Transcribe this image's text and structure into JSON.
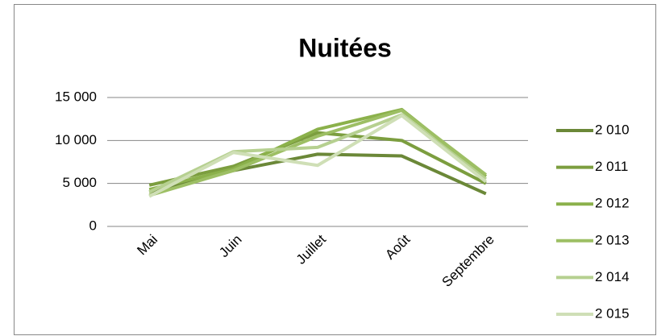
{
  "chart_data": {
    "type": "line",
    "title": "Nuitées",
    "categories": [
      "Mai",
      "Juin",
      "Juillet",
      "Août",
      "Septembre"
    ],
    "series": [
      {
        "name": "2 010",
        "color": "#6b8838",
        "values": [
          4000,
          6500,
          8400,
          8200,
          3800
        ]
      },
      {
        "name": "2 011",
        "color": "#7c9e3f",
        "values": [
          4800,
          7000,
          10900,
          10000,
          5000
        ]
      },
      {
        "name": "2 012",
        "color": "#8bb14b",
        "values": [
          4300,
          6700,
          11300,
          13600,
          5800
        ]
      },
      {
        "name": "2 013",
        "color": "#9dbf64",
        "values": [
          3600,
          6500,
          10500,
          13500,
          6000
        ]
      },
      {
        "name": "2 014",
        "color": "#b6d090",
        "values": [
          4000,
          8700,
          9200,
          13000,
          5500
        ]
      },
      {
        "name": "2 015",
        "color": "#cfdfb6",
        "values": [
          3500,
          8600,
          7100,
          12900,
          5200
        ]
      }
    ],
    "ylim": [
      0,
      15000
    ],
    "yticks": [
      {
        "value": 0,
        "label": "0"
      },
      {
        "value": 5000,
        "label": "5 000"
      },
      {
        "value": 10000,
        "label": "10 000"
      },
      {
        "value": 15000,
        "label": "15 000"
      }
    ],
    "grid": true,
    "legend": "right"
  }
}
